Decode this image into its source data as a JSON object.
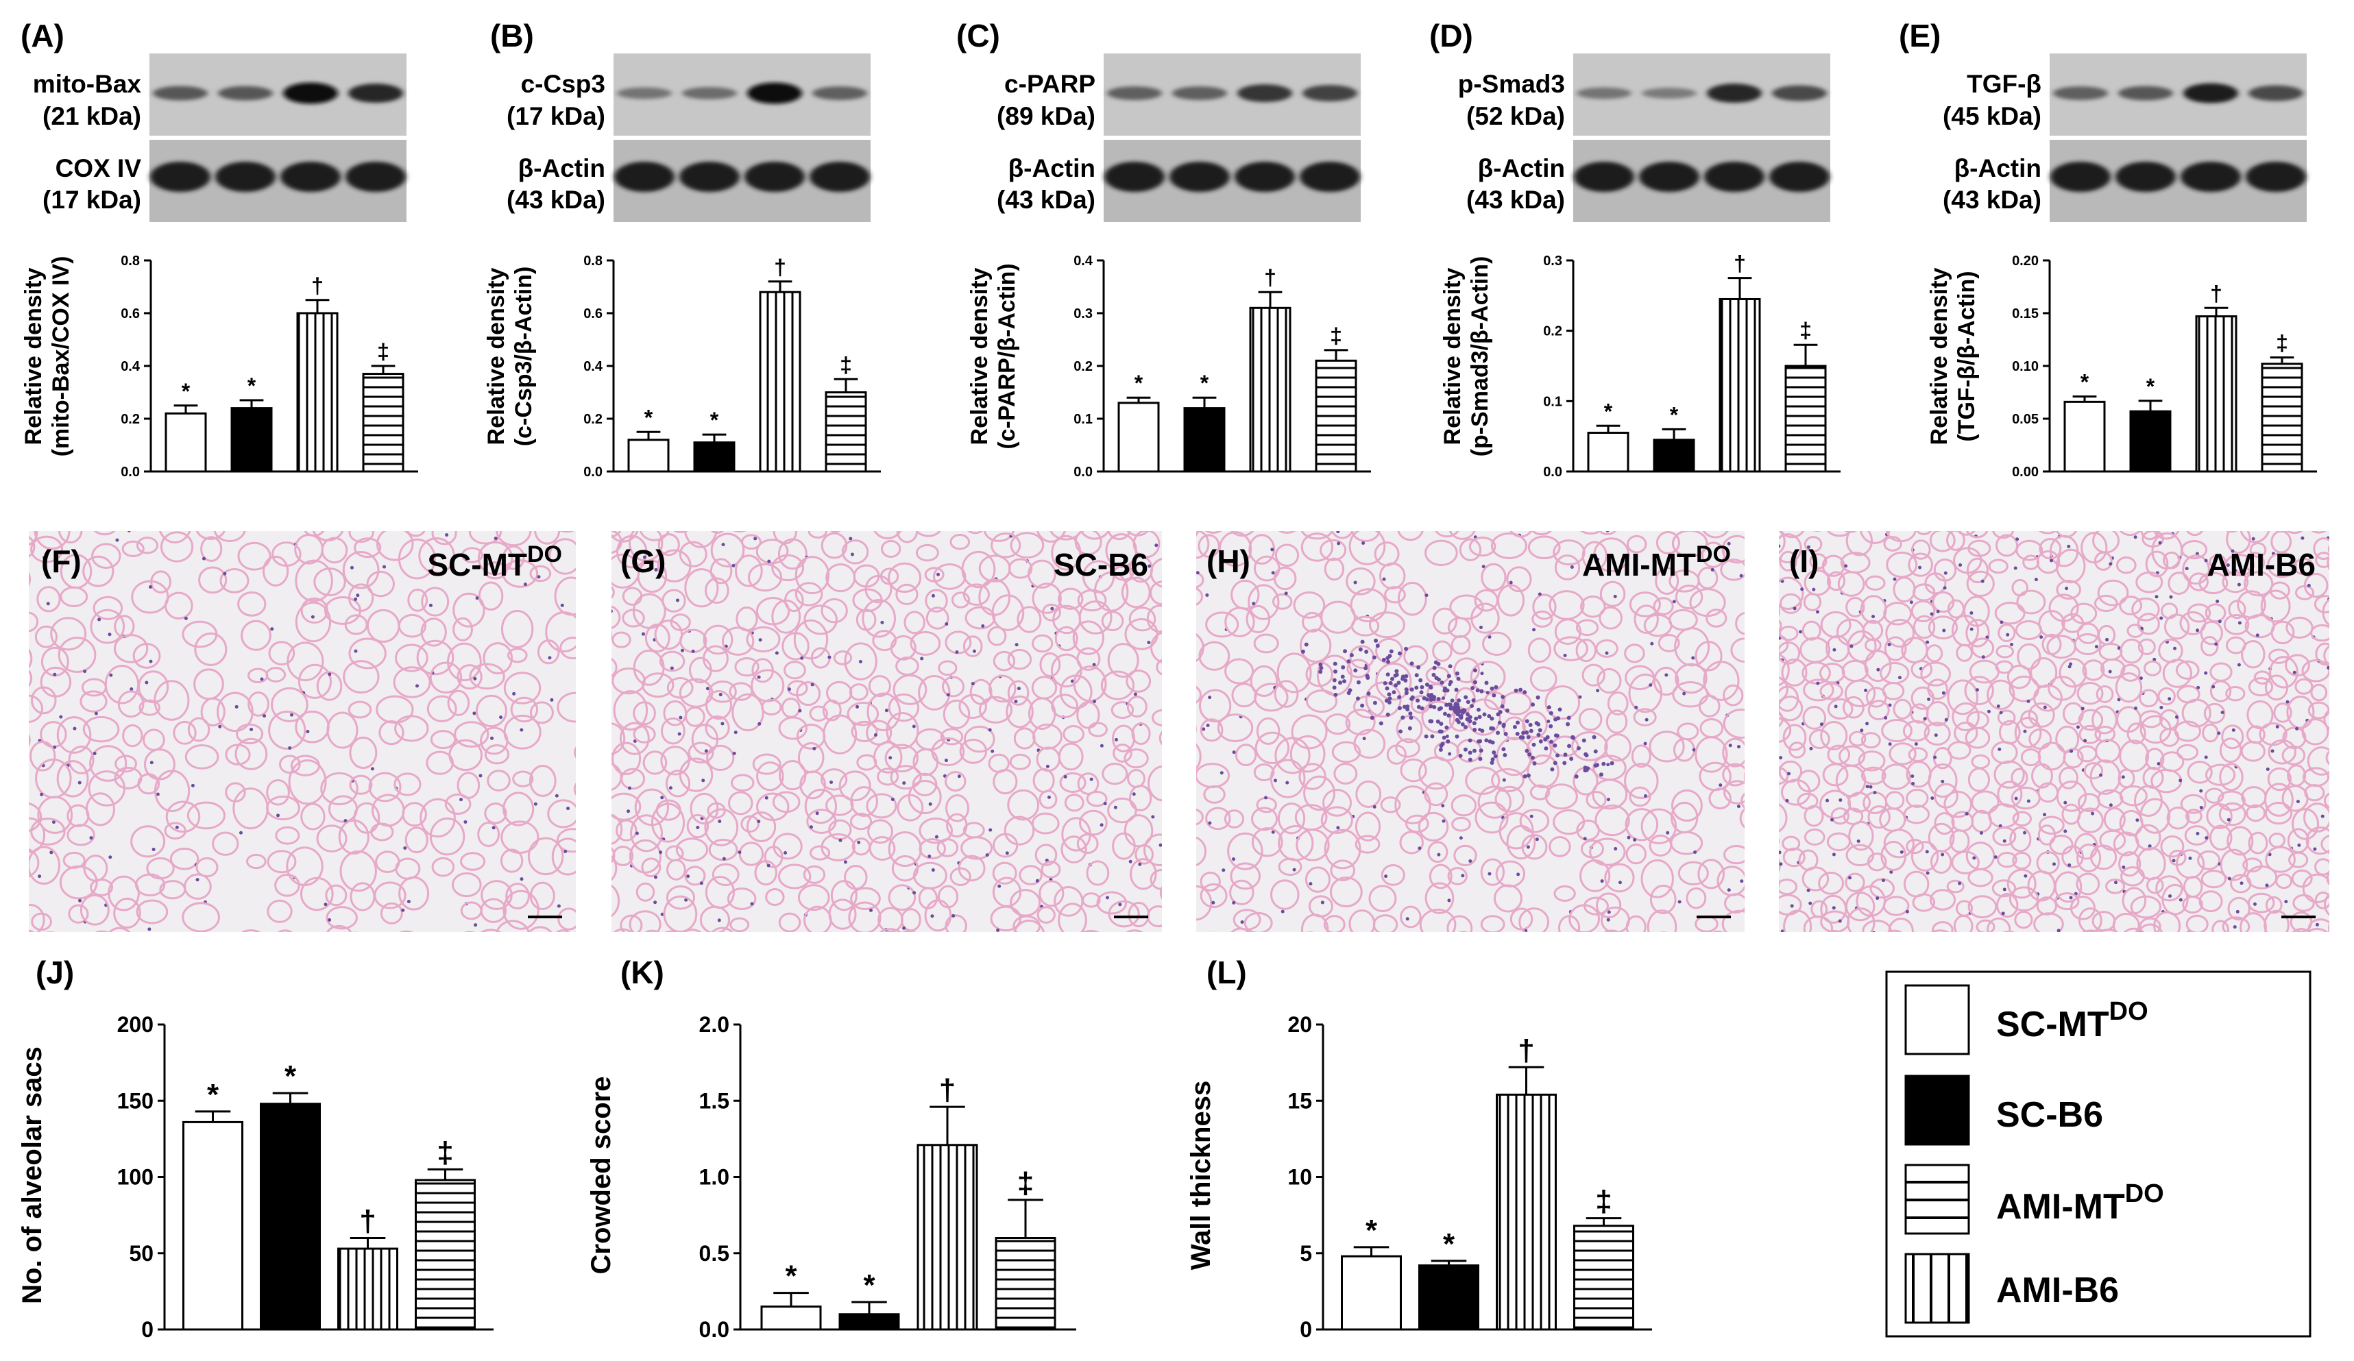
{
  "colors": {
    "background": "#ffffff",
    "ink": "#000000",
    "histo_pink": "#e7a9c8",
    "histo_purple": "#6a4c9c",
    "histo_bg": "#f1eef2"
  },
  "legend": {
    "items": [
      {
        "base": "SC-MT",
        "sup": "DO",
        "fill": "white"
      },
      {
        "base": "SC-B6",
        "sup": "",
        "fill": "black"
      },
      {
        "base": "AMI-MT",
        "sup": "DO",
        "fill": "hlines"
      },
      {
        "base": "AMI-B6",
        "sup": "",
        "fill": "vlines"
      }
    ]
  },
  "blots": [
    {
      "panel": "(A)",
      "top_name": "mito-Bax",
      "top_kda": "(21 kDa)",
      "bottom_name": "COX IV",
      "bottom_kda": "(17 kDa)",
      "top_intensity": [
        0.45,
        0.45,
        0.95,
        0.8
      ]
    },
    {
      "panel": "(B)",
      "top_name": "c-Csp3",
      "top_kda": "(17 kDa)",
      "bottom_name": "β-Actin",
      "bottom_kda": "(43 kDa)",
      "top_intensity": [
        0.25,
        0.3,
        0.95,
        0.4
      ]
    },
    {
      "panel": "(C)",
      "top_name": "c-PARP",
      "top_kda": "(89 kDa)",
      "bottom_name": "β-Actin",
      "bottom_kda": "(43 kDa)",
      "top_intensity": [
        0.4,
        0.4,
        0.7,
        0.6
      ]
    },
    {
      "panel": "(D)",
      "top_name": "p-Smad3",
      "top_kda": "(52 kDa)",
      "bottom_name": "β-Actin",
      "bottom_kda": "(43 kDa)",
      "top_intensity": [
        0.25,
        0.2,
        0.8,
        0.55
      ]
    },
    {
      "panel": "(E)",
      "top_name": "TGF-β",
      "top_kda": "(45 kDa)",
      "bottom_name": "β-Actin",
      "bottom_kda": "(43 kDa)",
      "top_intensity": [
        0.4,
        0.45,
        0.85,
        0.55
      ]
    }
  ],
  "histology": [
    {
      "panel": "(F)",
      "base": "SC-MT",
      "sup": "DO",
      "density": 0.5,
      "lesion": false
    },
    {
      "panel": "(G)",
      "base": "SC-B6",
      "sup": "",
      "density": 0.75,
      "lesion": false
    },
    {
      "panel": "(H)",
      "base": "AMI-MT",
      "sup": "DO",
      "density": 0.6,
      "lesion": true
    },
    {
      "panel": "(I)",
      "base": "AMI-B6",
      "sup": "",
      "density": 0.95,
      "lesion": false
    }
  ],
  "chart_data": [
    {
      "panel": "(A)",
      "type": "bar",
      "ylabel": "Relative density",
      "ylabel2": "(mito-Bax/COX IV)",
      "ylim": [
        0,
        0.8
      ],
      "ticks": [
        "0.0",
        "0.2",
        "0.4",
        "0.6",
        "0.8"
      ],
      "values": [
        0.22,
        0.24,
        0.6,
        0.37
      ],
      "errors": [
        0.03,
        0.03,
        0.05,
        0.03
      ],
      "marks": [
        "*",
        "*",
        "†",
        "‡"
      ]
    },
    {
      "panel": "(B)",
      "type": "bar",
      "ylabel": "Relative density",
      "ylabel2": "(c-Csp3/β-Actin)",
      "ylim": [
        0,
        0.8
      ],
      "ticks": [
        "0.0",
        "0.2",
        "0.4",
        "0.6",
        "0.8"
      ],
      "values": [
        0.12,
        0.11,
        0.68,
        0.3
      ],
      "errors": [
        0.03,
        0.03,
        0.04,
        0.05
      ],
      "marks": [
        "*",
        "*",
        "†",
        "‡"
      ]
    },
    {
      "panel": "(C)",
      "type": "bar",
      "ylabel": "Relative density",
      "ylabel2": "(c-PARP/β-Actin)",
      "ylim": [
        0,
        0.4
      ],
      "ticks": [
        "0.0",
        "0.1",
        "0.2",
        "0.3",
        "0.4"
      ],
      "values": [
        0.13,
        0.12,
        0.31,
        0.21
      ],
      "errors": [
        0.01,
        0.02,
        0.03,
        0.02
      ],
      "marks": [
        "*",
        "*",
        "†",
        "‡"
      ]
    },
    {
      "panel": "(D)",
      "type": "bar",
      "ylabel": "Relative density",
      "ylabel2": "(p-Smad3/β-Actin)",
      "ylim": [
        0,
        0.3
      ],
      "ticks": [
        "0.0",
        "0.1",
        "0.2",
        "0.3"
      ],
      "values": [
        0.055,
        0.045,
        0.245,
        0.15
      ],
      "errors": [
        0.01,
        0.015,
        0.03,
        0.03
      ],
      "marks": [
        "*",
        "*",
        "†",
        "‡"
      ]
    },
    {
      "panel": "(E)",
      "type": "bar",
      "ylabel": "Relative density",
      "ylabel2": "(TGF-β/β-Actin)",
      "ylim": [
        0,
        0.2
      ],
      "ticks": [
        "0.00",
        "0.05",
        "0.10",
        "0.15",
        "0.20"
      ],
      "values": [
        0.066,
        0.057,
        0.147,
        0.102
      ],
      "errors": [
        0.005,
        0.01,
        0.008,
        0.006
      ],
      "marks": [
        "*",
        "*",
        "†",
        "‡"
      ]
    },
    {
      "panel": "(J)",
      "type": "bar",
      "ylabel": "No. of alveolar sacs",
      "ylabel2": "",
      "ylim": [
        0,
        200
      ],
      "ticks": [
        "0",
        "50",
        "100",
        "150",
        "200"
      ],
      "values": [
        136,
        148,
        53,
        98
      ],
      "errors": [
        7,
        7,
        7,
        7
      ],
      "marks": [
        "*",
        "*",
        "†",
        "‡"
      ]
    },
    {
      "panel": "(K)",
      "type": "bar",
      "ylabel": "Crowded score",
      "ylabel2": "",
      "ylim": [
        0,
        2.0
      ],
      "ticks": [
        "0.0",
        "0.5",
        "1.0",
        "1.5",
        "2.0"
      ],
      "values": [
        0.15,
        0.1,
        1.21,
        0.6
      ],
      "errors": [
        0.09,
        0.08,
        0.25,
        0.25
      ],
      "marks": [
        "*",
        "*",
        "†",
        "‡"
      ]
    },
    {
      "panel": "(L)",
      "type": "bar",
      "ylabel": "Wall thickness",
      "ylabel2": "",
      "ylim": [
        0,
        20
      ],
      "ticks": [
        "0",
        "5",
        "10",
        "15",
        "20"
      ],
      "values": [
        4.8,
        4.2,
        15.4,
        6.8
      ],
      "errors": [
        0.6,
        0.3,
        1.8,
        0.5
      ],
      "marks": [
        "*",
        "*",
        "†",
        "‡"
      ]
    }
  ]
}
